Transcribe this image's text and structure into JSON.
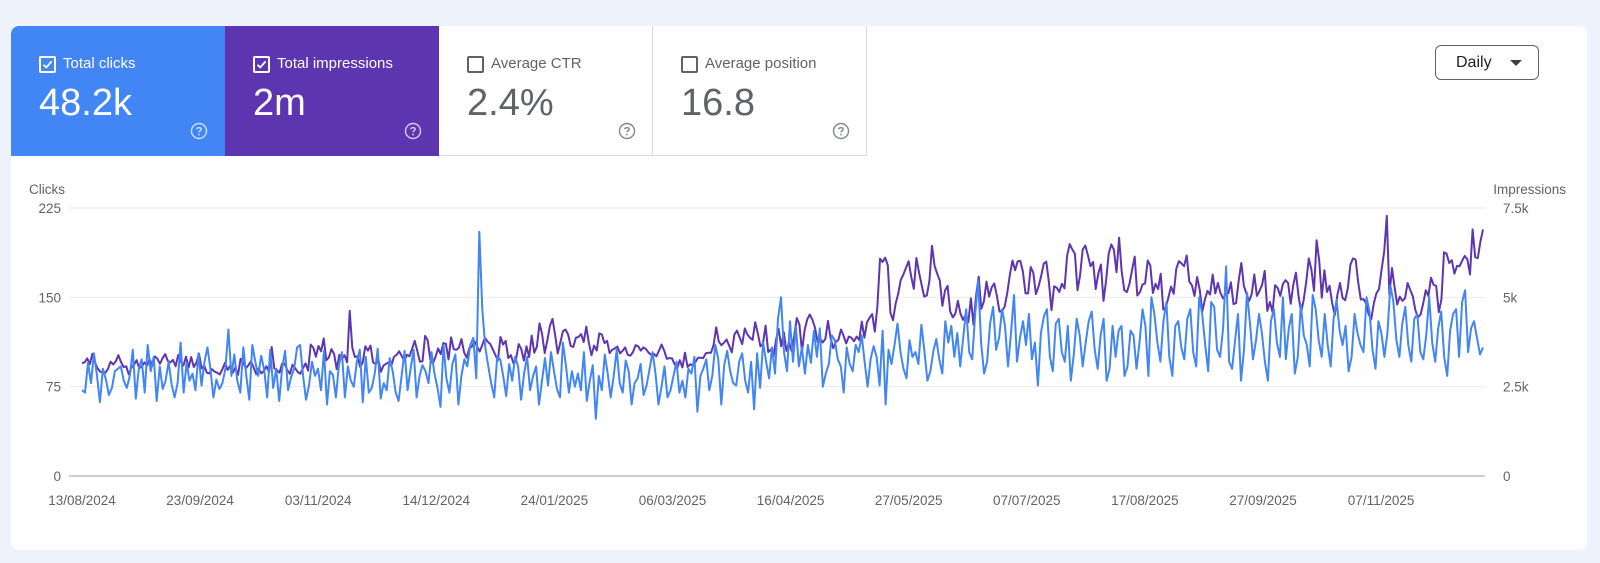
{
  "metrics": [
    {
      "id": "clicks",
      "label": "Total clicks",
      "value": "48.2k",
      "checked": true,
      "color": "#4285f4"
    },
    {
      "id": "impressions",
      "label": "Total impressions",
      "value": "2m",
      "checked": true,
      "color": "#5e35b1"
    },
    {
      "id": "ctr",
      "label": "Average CTR",
      "value": "2.4%",
      "checked": false,
      "color": "#ffffff"
    },
    {
      "id": "position",
      "label": "Average position",
      "value": "16.8",
      "checked": false,
      "color": "#ffffff"
    }
  ],
  "period_select": {
    "value": "Daily"
  },
  "icons": {
    "help": "help-circle-icon",
    "checkbox": "checkbox-icon",
    "dropdown": "caret-down-icon"
  },
  "chart_data": {
    "type": "line",
    "ylabel_left": "Clicks",
    "ylabel_right": "Impressions",
    "ylim_left": [
      0,
      225
    ],
    "ylim_right": [
      0,
      7500
    ],
    "yticks_left": [
      "0",
      "75",
      "150",
      "225"
    ],
    "yticks_right": [
      "0",
      "2.5k",
      "5k",
      "7.5k"
    ],
    "xticks": [
      "13/08/2024",
      "23/09/2024",
      "03/11/2024",
      "14/12/2024",
      "24/01/2025",
      "06/03/2025",
      "16/04/2025",
      "27/05/2025",
      "07/07/2025",
      "17/08/2025",
      "27/09/2025",
      "07/11/2025"
    ],
    "x_start": "13/08/2024",
    "x_end": "15/12/2025",
    "grid": true,
    "series": [
      {
        "name": "Total clicks",
        "axis": "left",
        "color": "#4285f4",
        "values": [
          72,
          70,
          95,
          78,
          103,
          85,
          62,
          90,
          81,
          68,
          74,
          88,
          90,
          92,
          80,
          74,
          84,
          106,
          65,
          90,
          98,
          70,
          110,
          88,
          100,
          63,
          92,
          73,
          80,
          96,
          77,
          66,
          78,
          112,
          70,
          95,
          80,
          86,
          72,
          103,
          76,
          96,
          108,
          90,
          66,
          81,
          73,
          78,
          90,
          123,
          84,
          102,
          80,
          70,
          108,
          84,
          64,
          110,
          96,
          84,
          101,
          89,
          66,
          106,
          74,
          90,
          63,
          90,
          105,
          72,
          83,
          90,
          108,
          110,
          84,
          64,
          76,
          96,
          84,
          90,
          72,
          105,
          60,
          88,
          85,
          66,
          93,
          104,
          66,
          92,
          80,
          75,
          96,
          106,
          62,
          100,
          70,
          74,
          86,
          107,
          65,
          78,
          72,
          99,
          88,
          70,
          63,
          84,
          105,
          72,
          90,
          106,
          66,
          84,
          93,
          88,
          78,
          104,
          86,
          74,
          58,
          110,
          82,
          70,
          94,
          102,
          60,
          84,
          98,
          92,
          110,
          116,
          82,
          205,
          140,
          108,
          92,
          78,
          66,
          100,
          98,
          84,
          67,
          94,
          80,
          100,
          92,
          64,
          86,
          100,
          72,
          84,
          92,
          60,
          80,
          99,
          76,
          104,
          88,
          73,
          66,
          112,
          93,
          70,
          88,
          75,
          86,
          72,
          104,
          63,
          80,
          93,
          48,
          84,
          72,
          102,
          86,
          66,
          84,
          106,
          78,
          70,
          97,
          88,
          60,
          78,
          82,
          94,
          68,
          76,
          90,
          104,
          86,
          60,
          75,
          92,
          66,
          72,
          84,
          96,
          70,
          80,
          66,
          90,
          86,
          100,
          54,
          84,
          90,
          98,
          72,
          84,
          110,
          98,
          60,
          93,
          105,
          88,
          78,
          76,
          96,
          103,
          80,
          70,
          96,
          56,
          103,
          74,
          112,
          96,
          82,
          108,
          86,
          132,
          150,
          104,
          88,
          130,
          96,
          125,
          92,
          108,
          86,
          110,
          95,
          122,
          100,
          124,
          75,
          86,
          94,
          118,
          114,
          98,
          92,
          70,
          108,
          94,
          88,
          110,
          104,
          118,
          96,
          75,
          98,
          109,
          100,
          76,
          122,
          60,
          106,
          94,
          110,
          128,
          104,
          90,
          82,
          114,
          100,
          104,
          94,
          127,
          105,
          80,
          88,
          105,
          115,
          98,
          86,
          130,
          112,
          126,
          100,
          120,
          92,
          116,
          140,
          104,
          98,
          136,
          164,
          112,
          86,
          96,
          128,
          142,
          106,
          116,
          140,
          126,
          92,
          120,
          152,
          96,
          116,
          130,
          110,
          136,
          98,
          112,
          76,
          120,
          134,
          140,
          100,
          88,
          128,
          132,
          104,
          96,
          126,
          80,
          102,
          132,
          118,
          92,
          112,
          130,
          138,
          106,
          90,
          118,
          132,
          80,
          90,
          126,
          100,
          122,
          126,
          84,
          92,
          122,
          118,
          90,
          112,
          140,
          126,
          84,
          150,
          136,
          112,
          96,
          130,
          146,
          100,
          84,
          126,
          130,
          108,
          98,
          132,
          140,
          104,
          92,
          150,
          136,
          110,
          88,
          146,
          142,
          106,
          100,
          124,
          176,
          96,
          90,
          114,
          136,
          80,
          106,
          154,
          128,
          98,
          114,
          136,
          120,
          96,
          80,
          130,
          140,
          112,
          100,
          150,
          98,
          124,
          136,
          86,
          100,
          144,
          118,
          110,
          92,
          152,
          140,
          114,
          100,
          136,
          110,
          92,
          132,
          148,
          122,
          110,
          126,
          88,
          100,
          136,
          120,
          110,
          104,
          150,
          138,
          106,
          90,
          130,
          120,
          100,
          120,
          160,
          146,
          114,
          100,
          128,
          142,
          110,
          96,
          132,
          136,
          104,
          98,
          118,
          150,
          112,
          96,
          124,
          138,
          100,
          84,
          122,
          136,
          140,
          100,
          146,
          156,
          104,
          124,
          130,
          116,
          102,
          108
        ]
      },
      {
        "name": "Total impressions",
        "axis": "right",
        "color": "#5e35b1",
        "values": [
          3160,
          3180,
          3290,
          3130,
          3420,
          3180,
          3010,
          2920,
          2910,
          2890,
          3000,
          3200,
          3120,
          3210,
          3380,
          3190,
          3050,
          3070,
          2840,
          3040,
          3110,
          3240,
          3020,
          3060,
          3180,
          3090,
          3270,
          3080,
          3350,
          3280,
          3140,
          3300,
          3410,
          3220,
          3180,
          3250,
          3070,
          3390,
          3200,
          3090,
          3340,
          3030,
          3330,
          3050,
          3170,
          3420,
          3010,
          3090,
          2890,
          2870,
          2990,
          2920,
          2890,
          2840,
          2990,
          3170,
          2970,
          3080,
          2890,
          3040,
          2830,
          3280,
          3180,
          3010,
          3100,
          3210,
          3040,
          2850,
          3010,
          2870,
          2940,
          3070,
          2910,
          3610,
          3010,
          2960,
          2890,
          3140,
          3140,
          2960,
          2860,
          3110,
          3020,
          2910,
          2860,
          3010,
          3150,
          2950,
          3680,
          3590,
          3340,
          3640,
          3490,
          3850,
          3240,
          3320,
          3550,
          3410,
          2990,
          3390,
          3280,
          3380,
          3180,
          4620,
          3590,
          3330,
          3350,
          3060,
          3170,
          3630,
          3510,
          3650,
          3180,
          3130,
          3260,
          2920,
          3090,
          3140,
          3180,
          3090,
          3330,
          3390,
          3490,
          3360,
          3220,
          3390,
          3350,
          3560,
          3780,
          3500,
          3200,
          3210,
          3920,
          3800,
          3260,
          3150,
          3330,
          3570,
          3410,
          3720,
          3700,
          3260,
          3880,
          3550,
          3530,
          3590,
          3830,
          3460,
          3310,
          3580,
          3620,
          3770,
          3620,
          3480,
          3670,
          3870,
          3760,
          3700,
          3550,
          3390,
          3240,
          3890,
          3680,
          3780,
          3300,
          3380,
          3150,
          3280,
          3690,
          3550,
          3230,
          3630,
          3330,
          3930,
          3450,
          3620,
          4270,
          3970,
          3440,
          3790,
          4200,
          4400,
          3950,
          3430,
          3730,
          4050,
          4100,
          3960,
          3640,
          3610,
          3870,
          3890,
          3970,
          3750,
          4180,
          3720,
          3380,
          3650,
          3510,
          3990,
          3960,
          3720,
          3780,
          3440,
          3530,
          3570,
          3620,
          3430,
          3500,
          3600,
          3390,
          3370,
          3470,
          3660,
          3630,
          3510,
          3600,
          3550,
          3450,
          3390,
          3420,
          3350,
          3510,
          3680,
          3510,
          3280,
          3300,
          3290,
          3130,
          3020,
          3240,
          3040,
          3450,
          3050,
          3130,
          3090,
          3190,
          3310,
          3310,
          3300,
          3430,
          3450,
          3450,
          3670,
          4160,
          3760,
          3660,
          3730,
          3820,
          3640,
          3460,
          3960,
          4070,
          3880,
          3690,
          4130,
          3960,
          3870,
          3810,
          4300,
          4000,
          3630,
          3710,
          4210,
          3470,
          3540,
          3320,
          3810,
          4120,
          3630,
          4020,
          3500,
          3730,
          3500,
          3920,
          4420,
          4240,
          3490,
          4080,
          4380,
          4520,
          4370,
          4150,
          3750,
          3840,
          3740,
          3840,
          4340,
          3860,
          3580,
          3750,
          3810,
          4100,
          3920,
          3710,
          3900,
          3870,
          3770,
          3900,
          3810,
          4320,
          3870,
          4300,
          4430,
          4530,
          4040,
          4750,
          6080,
          5990,
          6110,
          5900,
          4570,
          4360,
          4820,
          5100,
          5490,
          5640,
          5830,
          6010,
          5580,
          5240,
          6100,
          5700,
          5350,
          5020,
          5050,
          5460,
          6440,
          5880,
          5660,
          5470,
          4760,
          5190,
          5320,
          4600,
          4440,
          4550,
          4900,
          4540,
          4370,
          4510,
          4300,
          4970,
          4230,
          5050,
          5580,
          4680,
          4890,
          5440,
          5020,
          5280,
          5390,
          5040,
          4600,
          4620,
          4740,
          5130,
          5640,
          6030,
          5760,
          6010,
          6020,
          5720,
          5110,
          5110,
          5850,
          5690,
          5090,
          5300,
          5590,
          5940,
          6000,
          5420,
          4640,
          5310,
          5270,
          5150,
          5380,
          5250,
          6160,
          6490,
          6340,
          6220,
          5200,
          5620,
          6340,
          6450,
          6180,
          5870,
          5990,
          5230,
          5660,
          5920,
          4900,
          5470,
          6220,
          6480,
          6330,
          5700,
          6670,
          5720,
          5200,
          5150,
          5380,
          5770,
          6140,
          5050,
          5140,
          5360,
          5390,
          6030,
          5890,
          5120,
          5380,
          5230,
          5660,
          4660,
          4720,
          5010,
          5300,
          5100,
          5800,
          6010,
          5950,
          5870,
          6170,
          5440,
          5340,
          5040,
          5570,
          5220,
          4600,
          4940,
          5180,
          5080,
          5640,
          5110,
          5400,
          5120,
          4970,
          5090,
          5110,
          5420,
          4810,
          4840,
          5470,
          5960,
          5320,
          5100,
          4900,
          5090,
          5640,
          5040,
          5180,
          5350,
          5740,
          4620,
          4870,
          4590,
          5340,
          5260,
          5040,
          5370,
          5480,
          5400,
          4820,
          5350,
          5690,
          5050,
          4580,
          4930,
          5450,
          6090,
          5780,
          5180,
          6600,
          6030,
          4990,
          5760,
          5150,
          5320,
          4830,
          4500,
          5070,
          5400,
          4980,
          4920,
          5250,
          5910,
          6090,
          6060,
          5420,
          4940,
          4950,
          4840,
          4530,
          4380,
          4830,
          5110,
          5230,
          5780,
          6280,
          7280,
          5080,
          5820,
          5280,
          4800,
          5020,
          4900,
          4970,
          5400,
          5210,
          5030,
          4640,
          4440,
          4520,
          4830,
          5200,
          5040,
          5550,
          5350,
          5320,
          4580,
          4940,
          6260,
          6220,
          5960,
          6040,
          5660,
          5880,
          5870,
          6030,
          6160,
          6060,
          5640,
          6900,
          6120,
          6100,
          6560,
          6900
        ]
      }
    ]
  }
}
